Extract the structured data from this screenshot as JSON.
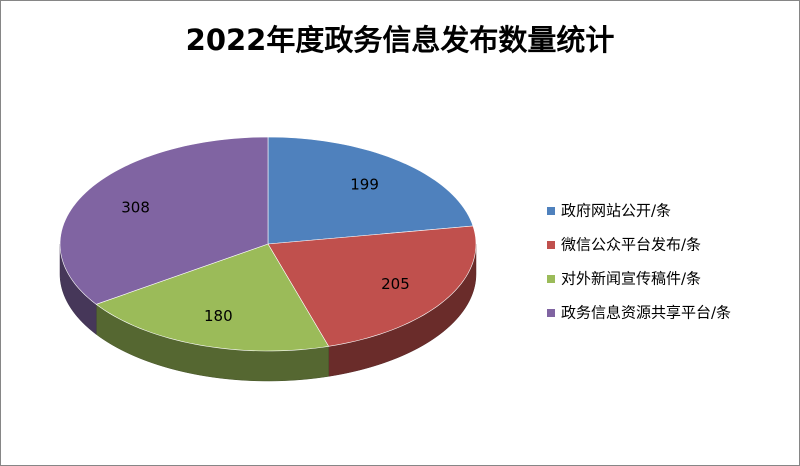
{
  "chart_data": {
    "type": "pie",
    "title": "2022年度政务信息发布数量统计",
    "categories": [
      "政府网站公开/条",
      "微信公众平台发布/条",
      "对外新闻宣传稿件/条",
      "政务信息资源共享平台/条"
    ],
    "values": [
      199,
      205,
      180,
      308
    ],
    "colors": [
      "#4f81bd",
      "#c0504d",
      "#9bbb59",
      "#8064a2"
    ],
    "legend": "right"
  }
}
